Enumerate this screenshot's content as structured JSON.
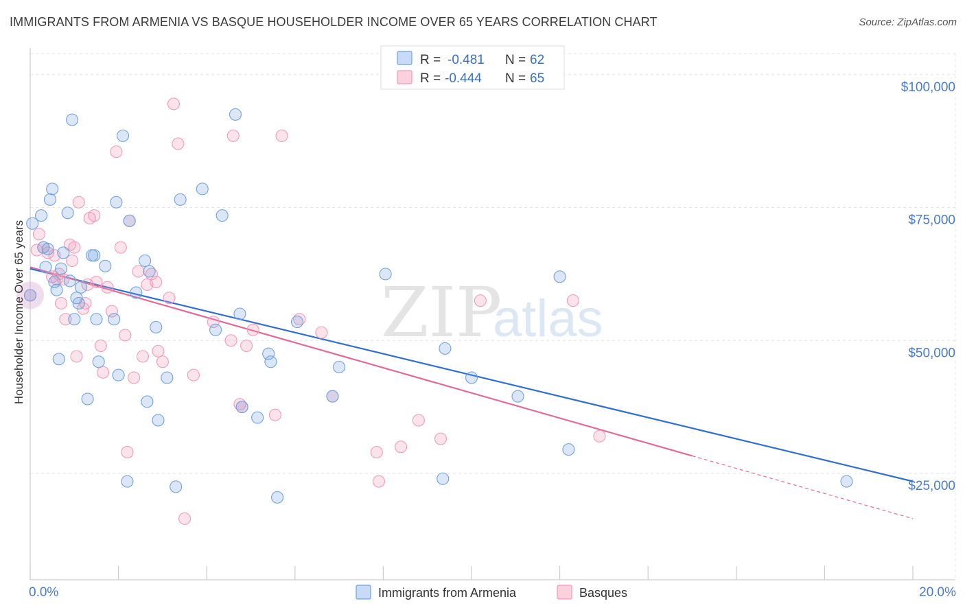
{
  "header": {
    "title": "IMMIGRANTS FROM ARMENIA VS BASQUE HOUSEHOLDER INCOME OVER 65 YEARS CORRELATION CHART",
    "source": "Source: ZipAtlas.com"
  },
  "watermark": {
    "zip": "ZIP",
    "atlas": "atlas"
  },
  "legend": {
    "series": [
      {
        "r_label": "R =",
        "r_value": "-0.481",
        "n_label": "N =",
        "n_value": "62"
      },
      {
        "r_label": "R =",
        "r_value": "-0.444",
        "n_label": "N =",
        "n_value": "65"
      }
    ]
  },
  "chart_data": {
    "type": "scatter",
    "title": "IMMIGRANTS FROM ARMENIA VS BASQUE HOUSEHOLDER INCOME OVER 65 YEARS CORRELATION CHART",
    "xlabel": "",
    "ylabel": "Householder Income Over 65 years",
    "xlim": [
      0,
      20
    ],
    "ylim": [
      5000,
      105000
    ],
    "x_tick_labels": [
      "0.0%",
      "20.0%"
    ],
    "y_ticks": [
      25000,
      50000,
      75000,
      100000
    ],
    "y_tick_labels": [
      "$25,000",
      "$50,000",
      "$75,000",
      "$100,000"
    ],
    "grid": true,
    "legend_placement": "top-center",
    "colors": {
      "armenia": "#6fa0e0",
      "basques": "#f19ab8",
      "armenia_line": "#2e6fd1",
      "basques_line": "#e06a98"
    },
    "series": [
      {
        "name": "Immigrants from Armenia",
        "r": -0.481,
        "n": 62,
        "trend": {
          "x": [
            0,
            20
          ],
          "y": [
            63500,
            23500
          ]
        },
        "points": [
          [
            0.05,
            72000
          ],
          [
            0.25,
            73500
          ],
          [
            0.3,
            67500
          ],
          [
            0.35,
            63800
          ],
          [
            0.4,
            67200
          ],
          [
            0.45,
            76500
          ],
          [
            0.5,
            78500
          ],
          [
            0.55,
            61000
          ],
          [
            0.6,
            59500
          ],
          [
            0.65,
            46500
          ],
          [
            0.7,
            63500
          ],
          [
            0.75,
            66500
          ],
          [
            0.85,
            74000
          ],
          [
            0.9,
            61200
          ],
          [
            0.95,
            91500
          ],
          [
            1.0,
            54000
          ],
          [
            1.05,
            58000
          ],
          [
            1.1,
            57000
          ],
          [
            1.15,
            60000
          ],
          [
            1.3,
            39000
          ],
          [
            1.4,
            66000
          ],
          [
            1.45,
            66000
          ],
          [
            1.5,
            54000
          ],
          [
            1.55,
            46000
          ],
          [
            1.7,
            64000
          ],
          [
            1.9,
            54000
          ],
          [
            1.95,
            76000
          ],
          [
            2.0,
            43500
          ],
          [
            2.1,
            88500
          ],
          [
            2.2,
            23500
          ],
          [
            2.25,
            72500
          ],
          [
            2.4,
            59000
          ],
          [
            2.6,
            65000
          ],
          [
            2.65,
            38500
          ],
          [
            2.7,
            63000
          ],
          [
            2.85,
            52500
          ],
          [
            2.9,
            35000
          ],
          [
            3.1,
            43000
          ],
          [
            3.3,
            22500
          ],
          [
            3.4,
            76500
          ],
          [
            3.9,
            78500
          ],
          [
            4.2,
            52000
          ],
          [
            4.35,
            73500
          ],
          [
            4.65,
            92500
          ],
          [
            4.75,
            55000
          ],
          [
            4.8,
            37500
          ],
          [
            5.15,
            35500
          ],
          [
            5.4,
            47500
          ],
          [
            5.45,
            46000
          ],
          [
            5.6,
            20500
          ],
          [
            6.05,
            53500
          ],
          [
            6.85,
            39500
          ],
          [
            7.0,
            45000
          ],
          [
            8.05,
            62500
          ],
          [
            9.35,
            24000
          ],
          [
            9.4,
            48500
          ],
          [
            10.0,
            43000
          ],
          [
            11.05,
            39500
          ],
          [
            12.0,
            62000
          ],
          [
            12.2,
            29500
          ],
          [
            18.5,
            23500
          ],
          [
            0.0,
            58500
          ]
        ]
      },
      {
        "name": "Basques",
        "r": -0.444,
        "n": 65,
        "trend": {
          "x": [
            0,
            15
          ],
          "y": [
            63800,
            28300
          ]
        },
        "trend_dashed": {
          "x": [
            15,
            20
          ],
          "y": [
            28300,
            16500
          ]
        },
        "points": [
          [
            0.0,
            58500
          ],
          [
            0.15,
            67000
          ],
          [
            0.2,
            70000
          ],
          [
            0.3,
            67500
          ],
          [
            0.5,
            62000
          ],
          [
            0.55,
            66000
          ],
          [
            0.65,
            62500
          ],
          [
            0.7,
            57000
          ],
          [
            0.75,
            61500
          ],
          [
            0.8,
            54000
          ],
          [
            0.9,
            68000
          ],
          [
            0.95,
            65000
          ],
          [
            1.0,
            67500
          ],
          [
            1.05,
            47000
          ],
          [
            1.1,
            76000
          ],
          [
            1.2,
            56000
          ],
          [
            1.3,
            60500
          ],
          [
            1.35,
            73000
          ],
          [
            1.45,
            73500
          ],
          [
            1.5,
            61000
          ],
          [
            1.6,
            49000
          ],
          [
            1.65,
            44000
          ],
          [
            1.75,
            60000
          ],
          [
            1.85,
            55500
          ],
          [
            1.95,
            85500
          ],
          [
            2.05,
            67500
          ],
          [
            2.15,
            51000
          ],
          [
            2.2,
            29000
          ],
          [
            2.25,
            72500
          ],
          [
            2.35,
            43000
          ],
          [
            2.55,
            47000
          ],
          [
            2.65,
            60500
          ],
          [
            2.75,
            62500
          ],
          [
            2.85,
            61000
          ],
          [
            2.9,
            48000
          ],
          [
            3.0,
            46000
          ],
          [
            3.15,
            58000
          ],
          [
            3.25,
            94500
          ],
          [
            3.35,
            87000
          ],
          [
            3.5,
            16500
          ],
          [
            3.7,
            43500
          ],
          [
            4.15,
            53500
          ],
          [
            4.55,
            50000
          ],
          [
            4.6,
            88500
          ],
          [
            4.75,
            38000
          ],
          [
            4.8,
            37500
          ],
          [
            4.9,
            49000
          ],
          [
            5.05,
            52000
          ],
          [
            5.55,
            36000
          ],
          [
            5.7,
            88500
          ],
          [
            6.1,
            54000
          ],
          [
            6.6,
            51500
          ],
          [
            6.85,
            39500
          ],
          [
            7.85,
            29000
          ],
          [
            7.9,
            23500
          ],
          [
            8.4,
            30000
          ],
          [
            8.8,
            35000
          ],
          [
            9.3,
            31500
          ],
          [
            10.2,
            57500
          ],
          [
            12.3,
            57500
          ],
          [
            12.9,
            32000
          ],
          [
            0.6,
            61500
          ],
          [
            1.25,
            57000
          ],
          [
            0.4,
            66500
          ],
          [
            2.45,
            63000
          ]
        ]
      }
    ]
  }
}
